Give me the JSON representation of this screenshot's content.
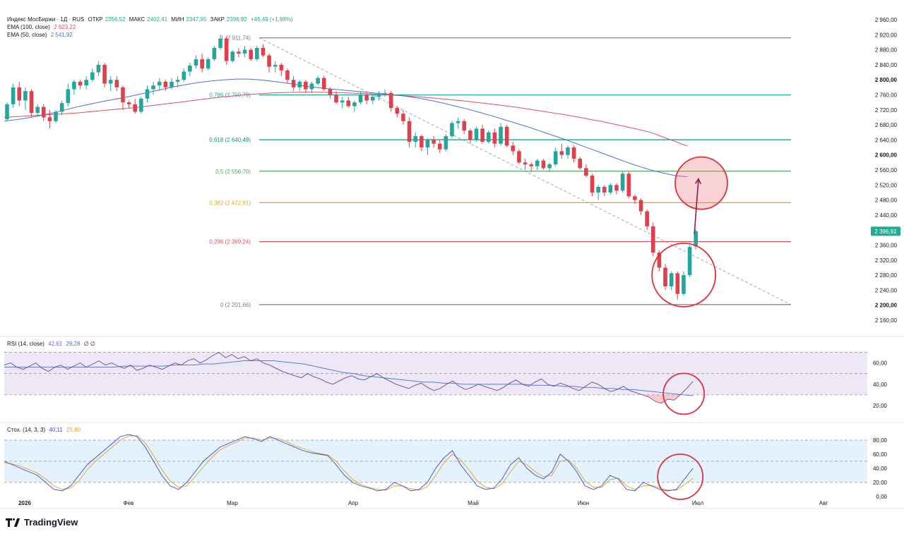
{
  "header": {
    "symbol_line": "Индекс МосБиржи · 1Д · RUS",
    "open_label": "ОТКР",
    "open_value": "2356,52",
    "high_label": "МАКС",
    "high_value": "2402,41",
    "low_label": "МИН",
    "low_value": "2347,95",
    "close_label": "ЗАКР",
    "close_value": "2396,92",
    "change": "+46,49 (+1,98%)"
  },
  "indicators": {
    "ema100": {
      "label": "EMA (100, close)",
      "value": "2 623,22",
      "color": "#e04f5f"
    },
    "ema50": {
      "label": "EMA (50, close)",
      "value": "2 541,92",
      "color": "#4a6fd6"
    }
  },
  "colors": {
    "up": "#26a69a",
    "down": "#e0404d",
    "last_price_badge": "#22ab94",
    "rsi_band": "#ede7f6",
    "stoch_band": "#e3f2fd",
    "annotation": "#e0313a",
    "arrow": "#8b1b4a"
  },
  "chart_data": [
    {
      "type": "candlestick",
      "name": "price",
      "y_axis_ticks": [
        2160,
        2200,
        2240,
        2280,
        2320,
        2360,
        2400,
        2440,
        2480,
        2520,
        2560,
        2600,
        2640,
        2680,
        2720,
        2760,
        2800,
        2840,
        2880,
        2920,
        2960
      ],
      "y_axis_tick_labels": [
        "2 160,00",
        "2 200,00",
        "2 240,00",
        "2 280,00",
        "2 320,00",
        "2 360,00",
        "2 400,00",
        "2 440,00",
        "2 480,00",
        "2 520,00",
        "2 560,00",
        "2 600,00",
        "2 640,00",
        "2 680,00",
        "2 720,00",
        "2 760,00",
        "2 800,00",
        "2 840,00",
        "2 880,00",
        "2 920,00",
        "2 960,00"
      ],
      "y_axis_bold": [
        2200,
        2600,
        2800
      ],
      "ylim": [
        2130,
        2975
      ],
      "x_axis_labels": [
        "2026",
        "Фев",
        "Мар",
        "Апр",
        "Май",
        "Июн",
        "Июл",
        "Авг"
      ],
      "last_price": 2396.92,
      "last_price_label": "2 396,92",
      "fibonacci": [
        {
          "level": "1",
          "value": 2911.74,
          "label": "1 (2 911,74)",
          "color": "#787b86"
        },
        {
          "level": "0,786",
          "value": 2759.79,
          "label": "0,786 (2 759,79)",
          "color": "#26a69a"
        },
        {
          "level": "0,618",
          "value": 2640.49,
          "label": "0,618 (2 640,49)",
          "color": "#089981"
        },
        {
          "level": "0,5",
          "value": 2556.7,
          "label": "0,5 (2 556,70)",
          "color": "#4caf50"
        },
        {
          "level": "0,382",
          "value": 2472.91,
          "label": "0,382 (2 472,91)",
          "color": "#e3a21a"
        },
        {
          "level": "0,236",
          "value": 2369.24,
          "label": "0,236 (2 369,24)",
          "color": "#e04f5f"
        },
        {
          "level": "0",
          "value": 2201.66,
          "label": "0 (2 201,66)",
          "color": "#787b86"
        }
      ],
      "candles_ohlc": [
        [
          2695,
          2740,
          2690,
          2735
        ],
        [
          2735,
          2790,
          2725,
          2780
        ],
        [
          2780,
          2795,
          2730,
          2745
        ],
        [
          2745,
          2780,
          2720,
          2770
        ],
        [
          2770,
          2775,
          2700,
          2712
        ],
        [
          2712,
          2735,
          2705,
          2728
        ],
        [
          2728,
          2735,
          2690,
          2700
        ],
        [
          2700,
          2720,
          2670,
          2690
        ],
        [
          2690,
          2720,
          2685,
          2715
        ],
        [
          2715,
          2745,
          2705,
          2738
        ],
        [
          2738,
          2790,
          2730,
          2775
        ],
        [
          2775,
          2800,
          2760,
          2795
        ],
        [
          2795,
          2800,
          2775,
          2785
        ],
        [
          2785,
          2810,
          2775,
          2800
        ],
        [
          2800,
          2830,
          2795,
          2820
        ],
        [
          2820,
          2850,
          2810,
          2840
        ],
        [
          2840,
          2845,
          2780,
          2790
        ],
        [
          2790,
          2810,
          2770,
          2800
        ],
        [
          2800,
          2810,
          2770,
          2780
        ],
        [
          2780,
          2785,
          2720,
          2740
        ],
        [
          2740,
          2745,
          2725,
          2735
        ],
        [
          2735,
          2750,
          2710,
          2715
        ],
        [
          2715,
          2755,
          2710,
          2750
        ],
        [
          2750,
          2785,
          2740,
          2775
        ],
        [
          2775,
          2795,
          2760,
          2785
        ],
        [
          2785,
          2805,
          2770,
          2795
        ],
        [
          2795,
          2800,
          2770,
          2780
        ],
        [
          2780,
          2805,
          2775,
          2795
        ],
        [
          2795,
          2810,
          2780,
          2800
        ],
        [
          2800,
          2830,
          2795,
          2822
        ],
        [
          2822,
          2845,
          2810,
          2838
        ],
        [
          2838,
          2865,
          2830,
          2855
        ],
        [
          2855,
          2870,
          2820,
          2830
        ],
        [
          2830,
          2860,
          2825,
          2855
        ],
        [
          2855,
          2890,
          2850,
          2885
        ],
        [
          2885,
          2920,
          2880,
          2910
        ],
        [
          2910,
          2915,
          2840,
          2850
        ],
        [
          2850,
          2880,
          2845,
          2875
        ],
        [
          2875,
          2885,
          2860,
          2870
        ],
        [
          2870,
          2890,
          2860,
          2880
        ],
        [
          2880,
          2885,
          2850,
          2855
        ],
        [
          2855,
          2890,
          2850,
          2885
        ],
        [
          2885,
          2895,
          2860,
          2865
        ],
        [
          2865,
          2870,
          2820,
          2835
        ],
        [
          2835,
          2850,
          2820,
          2840
        ],
        [
          2840,
          2845,
          2810,
          2825
        ],
        [
          2825,
          2830,
          2790,
          2800
        ],
        [
          2800,
          2810,
          2770,
          2780
        ],
        [
          2780,
          2800,
          2770,
          2795
        ],
        [
          2795,
          2800,
          2765,
          2775
        ],
        [
          2775,
          2795,
          2765,
          2790
        ],
        [
          2790,
          2810,
          2785,
          2805
        ],
        [
          2805,
          2810,
          2770,
          2775
        ],
        [
          2775,
          2780,
          2750,
          2760
        ],
        [
          2760,
          2770,
          2735,
          2740
        ],
        [
          2740,
          2755,
          2725,
          2745
        ],
        [
          2745,
          2755,
          2725,
          2730
        ],
        [
          2730,
          2745,
          2715,
          2740
        ],
        [
          2740,
          2770,
          2735,
          2760
        ],
        [
          2760,
          2765,
          2735,
          2745
        ],
        [
          2745,
          2760,
          2735,
          2755
        ],
        [
          2755,
          2770,
          2745,
          2762
        ],
        [
          2762,
          2775,
          2755,
          2765
        ],
        [
          2765,
          2770,
          2715,
          2725
        ],
        [
          2725,
          2730,
          2700,
          2710
        ],
        [
          2710,
          2720,
          2680,
          2690
        ],
        [
          2690,
          2700,
          2620,
          2635
        ],
        [
          2635,
          2660,
          2620,
          2650
        ],
        [
          2650,
          2655,
          2610,
          2620
        ],
        [
          2620,
          2645,
          2600,
          2640
        ],
        [
          2640,
          2650,
          2620,
          2630
        ],
        [
          2630,
          2640,
          2605,
          2615
        ],
        [
          2615,
          2655,
          2610,
          2650
        ],
        [
          2650,
          2690,
          2645,
          2685
        ],
        [
          2685,
          2700,
          2670,
          2690
        ],
        [
          2690,
          2695,
          2655,
          2665
        ],
        [
          2665,
          2670,
          2630,
          2640
        ],
        [
          2640,
          2675,
          2635,
          2670
        ],
        [
          2670,
          2680,
          2630,
          2635
        ],
        [
          2635,
          2665,
          2630,
          2660
        ],
        [
          2660,
          2670,
          2620,
          2630
        ],
        [
          2630,
          2685,
          2625,
          2675
        ],
        [
          2675,
          2680,
          2620,
          2625
        ],
        [
          2625,
          2635,
          2600,
          2610
        ],
        [
          2610,
          2615,
          2575,
          2580
        ],
        [
          2580,
          2590,
          2560,
          2575
        ],
        [
          2575,
          2580,
          2555,
          2570
        ],
        [
          2570,
          2590,
          2560,
          2585
        ],
        [
          2585,
          2590,
          2560,
          2565
        ],
        [
          2565,
          2580,
          2555,
          2575
        ],
        [
          2575,
          2620,
          2570,
          2610
        ],
        [
          2610,
          2630,
          2590,
          2600
        ],
        [
          2600,
          2625,
          2590,
          2620
        ],
        [
          2620,
          2625,
          2580,
          2590
        ],
        [
          2590,
          2595,
          2560,
          2565
        ],
        [
          2565,
          2575,
          2540,
          2545
        ],
        [
          2545,
          2550,
          2490,
          2500
        ],
        [
          2500,
          2520,
          2480,
          2515
        ],
        [
          2515,
          2520,
          2490,
          2500
        ],
        [
          2500,
          2525,
          2495,
          2520
        ],
        [
          2520,
          2525,
          2495,
          2505
        ],
        [
          2505,
          2555,
          2500,
          2550
        ],
        [
          2550,
          2555,
          2485,
          2490
        ],
        [
          2490,
          2495,
          2470,
          2480
        ],
        [
          2480,
          2485,
          2440,
          2450
        ],
        [
          2450,
          2455,
          2400,
          2410
        ],
        [
          2410,
          2420,
          2330,
          2340
        ],
        [
          2340,
          2345,
          2290,
          2300
        ],
        [
          2300,
          2310,
          2240,
          2250
        ],
        [
          2250,
          2290,
          2240,
          2285
        ],
        [
          2285,
          2290,
          2215,
          2230
        ],
        [
          2230,
          2290,
          2225,
          2280
        ],
        [
          2280,
          2360,
          2275,
          2355
        ],
        [
          2356.52,
          2402.41,
          2347.95,
          2396.92
        ]
      ],
      "ema50": [
        2690,
        2694,
        2699,
        2705,
        2712,
        2720,
        2728,
        2735,
        2742,
        2748,
        2754,
        2761,
        2768,
        2775,
        2782,
        2788,
        2793,
        2797,
        2800,
        2802,
        2802,
        2800,
        2796,
        2792,
        2787,
        2782,
        2778,
        2775,
        2772,
        2769,
        2766,
        2763,
        2760,
        2756,
        2751,
        2745,
        2738,
        2730,
        2722,
        2713,
        2704,
        2694,
        2684,
        2674,
        2663,
        2652,
        2641,
        2629,
        2617,
        2605,
        2593,
        2581,
        2570,
        2560,
        2552,
        2545,
        2542
      ],
      "ema100": [
        2700,
        2702,
        2704,
        2706,
        2708,
        2710,
        2712,
        2715,
        2718,
        2721,
        2724,
        2727,
        2731,
        2735,
        2739,
        2743,
        2747,
        2751,
        2755,
        2758,
        2761,
        2763,
        2765,
        2766,
        2767,
        2767,
        2767,
        2766,
        2765,
        2764,
        2763,
        2761,
        2759,
        2757,
        2755,
        2752,
        2749,
        2746,
        2743,
        2739,
        2735,
        2731,
        2727,
        2722,
        2717,
        2712,
        2707,
        2701,
        2695,
        2689,
        2682,
        2675,
        2668,
        2660,
        2648,
        2636,
        2623.22
      ],
      "indicator_last_values": {
        "ema100": 2623.22,
        "ema50": 2541.92
      }
    },
    {
      "type": "line",
      "name": "RSI",
      "title": "RSI (14, close)",
      "values_label": "42,61",
      "ma_label": "29,28",
      "extra_label": "∅ ∅",
      "y_axis_tick_labels": [
        "20,00",
        "40,00",
        "60,00"
      ],
      "y_ticks": [
        20,
        40,
        60
      ],
      "ylim": [
        10,
        75
      ],
      "band": [
        30,
        70
      ],
      "midline": 50,
      "rsi": [
        58,
        60,
        56,
        54,
        57,
        60,
        55,
        52,
        56,
        58,
        54,
        57,
        60,
        56,
        59,
        62,
        58,
        60,
        57,
        55,
        58,
        53,
        55,
        58,
        56,
        54,
        57,
        60,
        58,
        62,
        64,
        60,
        63,
        67,
        70,
        65,
        68,
        64,
        66,
        62,
        64,
        60,
        58,
        55,
        52,
        50,
        48,
        46,
        50,
        47,
        45,
        42,
        40,
        43,
        46,
        48,
        45,
        44,
        47,
        50,
        46,
        43,
        40,
        38,
        36,
        39,
        41,
        37,
        34,
        36,
        40,
        43,
        38,
        35,
        37,
        40,
        38,
        36,
        34,
        37,
        41,
        44,
        40,
        38,
        42,
        45,
        40,
        38,
        41,
        39,
        36,
        34,
        38,
        42,
        40,
        36,
        33,
        35,
        38,
        34,
        32,
        30,
        28,
        24,
        22,
        26,
        25,
        30,
        36,
        42.61
      ],
      "rsi_ma": [
        56,
        56,
        56,
        56,
        56,
        56,
        56,
        56,
        56,
        56,
        56,
        56,
        57,
        57,
        57,
        57,
        57,
        58,
        58,
        58,
        59,
        59,
        60,
        61,
        62,
        62,
        62,
        62,
        61,
        60,
        59,
        57,
        55,
        53,
        51,
        50,
        48,
        47,
        46,
        45,
        44,
        43,
        42,
        42,
        41,
        41,
        40,
        40,
        40,
        40,
        40,
        40,
        40,
        39,
        39,
        39,
        38,
        38,
        37,
        37,
        36,
        36,
        35,
        35,
        34,
        33,
        32,
        31,
        30,
        29.28
      ]
    },
    {
      "type": "line",
      "name": "Stochastic",
      "title": "Стох. (14, 3, 3)",
      "k_label": "40,11",
      "d_label": "25,80",
      "y_axis_tick_labels": [
        "0,00",
        "20,00",
        "40,00",
        "60,00",
        "80,00"
      ],
      "y_ticks": [
        0,
        20,
        40,
        60,
        80
      ],
      "ylim": [
        -8,
        92
      ],
      "band": [
        20,
        80
      ],
      "midline": 50,
      "k": [
        50,
        45,
        40,
        35,
        30,
        20,
        10,
        8,
        15,
        30,
        45,
        55,
        65,
        75,
        85,
        88,
        85,
        70,
        50,
        30,
        15,
        10,
        20,
        35,
        50,
        60,
        70,
        75,
        80,
        85,
        82,
        78,
        85,
        80,
        75,
        70,
        65,
        62,
        60,
        58,
        45,
        30,
        20,
        15,
        12,
        8,
        10,
        20,
        15,
        8,
        10,
        20,
        40,
        55,
        65,
        45,
        30,
        15,
        10,
        12,
        25,
        45,
        55,
        40,
        30,
        25,
        35,
        60,
        50,
        35,
        15,
        10,
        15,
        30,
        25,
        10,
        8,
        20,
        15,
        10,
        8,
        10,
        25,
        40.11
      ],
      "d": [
        48,
        46,
        43,
        38,
        33,
        25,
        15,
        10,
        12,
        22,
        38,
        50,
        60,
        70,
        80,
        86,
        86,
        76,
        58,
        38,
        22,
        13,
        15,
        28,
        42,
        55,
        66,
        72,
        77,
        83,
        83,
        80,
        83,
        82,
        78,
        72,
        68,
        64,
        61,
        59,
        50,
        36,
        24,
        17,
        13,
        10,
        9,
        15,
        15,
        11,
        9,
        14,
        30,
        48,
        60,
        52,
        38,
        22,
        13,
        11,
        18,
        35,
        50,
        45,
        35,
        28,
        30,
        50,
        52,
        40,
        22,
        13,
        13,
        24,
        26,
        15,
        10,
        15,
        16,
        12,
        9,
        9,
        17,
        25.8
      ]
    }
  ],
  "annotations": [
    {
      "kind": "circle",
      "on": "price",
      "desc": "bottom"
    },
    {
      "kind": "circle",
      "on": "price",
      "desc": "target"
    },
    {
      "kind": "arrow",
      "on": "price"
    },
    {
      "kind": "circle",
      "on": "rsi"
    },
    {
      "kind": "circle",
      "on": "stoch"
    }
  ],
  "branding": {
    "name": "TradingView"
  }
}
